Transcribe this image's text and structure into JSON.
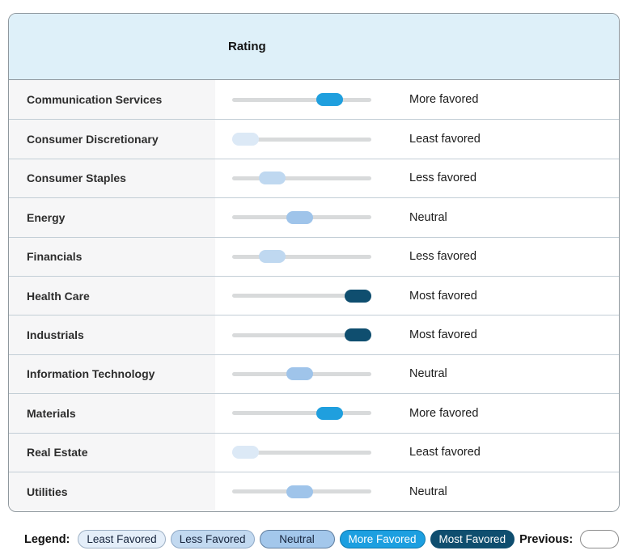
{
  "table": {
    "header": "Rating",
    "rows": [
      {
        "sector": "Communication Services",
        "rating": "More favored",
        "level": 3
      },
      {
        "sector": "Consumer Discretionary",
        "rating": "Least favored",
        "level": 0
      },
      {
        "sector": "Consumer Staples",
        "rating": "Less favored",
        "level": 1
      },
      {
        "sector": "Energy",
        "rating": "Neutral",
        "level": 2
      },
      {
        "sector": "Financials",
        "rating": "Less favored",
        "level": 1
      },
      {
        "sector": "Health Care",
        "rating": "Most favored",
        "level": 4
      },
      {
        "sector": "Industrials",
        "rating": "Most favored",
        "level": 4
      },
      {
        "sector": "Information Technology",
        "rating": "Neutral",
        "level": 2
      },
      {
        "sector": "Materials",
        "rating": "More favored",
        "level": 3
      },
      {
        "sector": "Real Estate",
        "rating": "Least favored",
        "level": 0
      },
      {
        "sector": "Utilities",
        "rating": "Neutral",
        "level": 2
      }
    ]
  },
  "legend": {
    "label": "Legend:",
    "items": [
      {
        "label": "Least Favored",
        "level": 0
      },
      {
        "label": "Less Favored",
        "level": 1
      },
      {
        "label": "Neutral",
        "level": 2
      },
      {
        "label": "More Favored",
        "level": 3
      },
      {
        "label": "Most Favored",
        "level": 4
      }
    ],
    "previous_label": "Previous:"
  },
  "colors": {
    "track": "#d8dadb",
    "header_bg": "#def0f9",
    "levels": [
      "#dce9f6",
      "#bfd8f0",
      "#9fc4ea",
      "#1f9fde",
      "#0f4e6f"
    ]
  }
}
